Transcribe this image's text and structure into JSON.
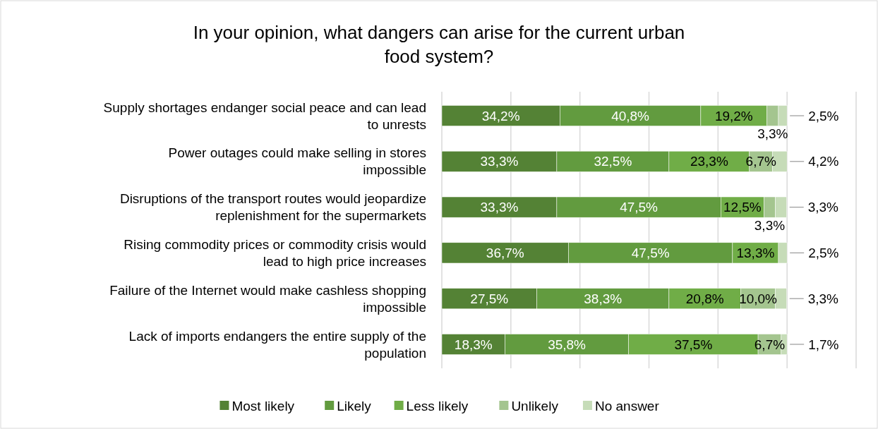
{
  "chart_data": {
    "type": "bar",
    "orientation": "horizontal",
    "stacked": true,
    "title": "In your opinion, what dangers can arise for the current urban food system?",
    "categories": [
      "Supply shortages endanger social peace and can lead to unrests",
      "Power outages could make selling in stores impossible",
      "Disruptions of the transport routes would jeopardize replenishment for the supermarkets",
      "Rising commodity prices or commodity crisis would lead to high price increases",
      "Failure of the Internet would make cashless shopping impossible",
      "Lack of imports endangers the entire supply of the population"
    ],
    "series": [
      {
        "name": "Most likely",
        "color": "#548235",
        "values": [
          34.2,
          33.3,
          33.3,
          36.7,
          27.5,
          18.3
        ],
        "value_labels": [
          "34,2%",
          "33,3%",
          "33,3%",
          "36,7%",
          "27,5%",
          "18,3%"
        ]
      },
      {
        "name": "Likely",
        "color": "#629b3f",
        "values": [
          40.8,
          32.5,
          47.5,
          47.5,
          38.3,
          35.8
        ],
        "value_labels": [
          "40,8%",
          "32,5%",
          "47,5%",
          "47,5%",
          "38,3%",
          "35,8%"
        ]
      },
      {
        "name": "Less likely",
        "color": "#70ad47",
        "values": [
          19.2,
          23.3,
          12.5,
          13.3,
          20.8,
          37.5
        ],
        "value_labels": [
          "19,2%",
          "23,3%",
          "12,5%",
          "13,3%",
          "20,8%",
          "37,5%"
        ]
      },
      {
        "name": "Unlikely",
        "color": "#a4c58f",
        "values": [
          3.3,
          6.7,
          3.3,
          null,
          10.0,
          6.7
        ],
        "value_labels": [
          "3,3%",
          "6,7%",
          "3,3%",
          null,
          "10,0%",
          "6,7%"
        ]
      },
      {
        "name": "No answer",
        "color": "#c6dcb8",
        "values": [
          2.5,
          4.2,
          3.3,
          2.5,
          3.3,
          1.7
        ],
        "value_labels": [
          "2,5%",
          "4,2%",
          "3,3%",
          "2,5%",
          "3,3%",
          "1,7%"
        ]
      }
    ],
    "xlim": [
      0,
      120
    ],
    "xticks": [
      {
        "value": 0,
        "label": null
      },
      {
        "value": 20,
        "label": null
      },
      {
        "value": 40,
        "label": null
      },
      {
        "value": 60,
        "label": null
      },
      {
        "value": 80,
        "label": null
      },
      {
        "value": 100,
        "label": null
      },
      {
        "value": 120,
        "label": null
      }
    ],
    "tick_labels": "y",
    "grid": "x",
    "legend": "bottom"
  }
}
